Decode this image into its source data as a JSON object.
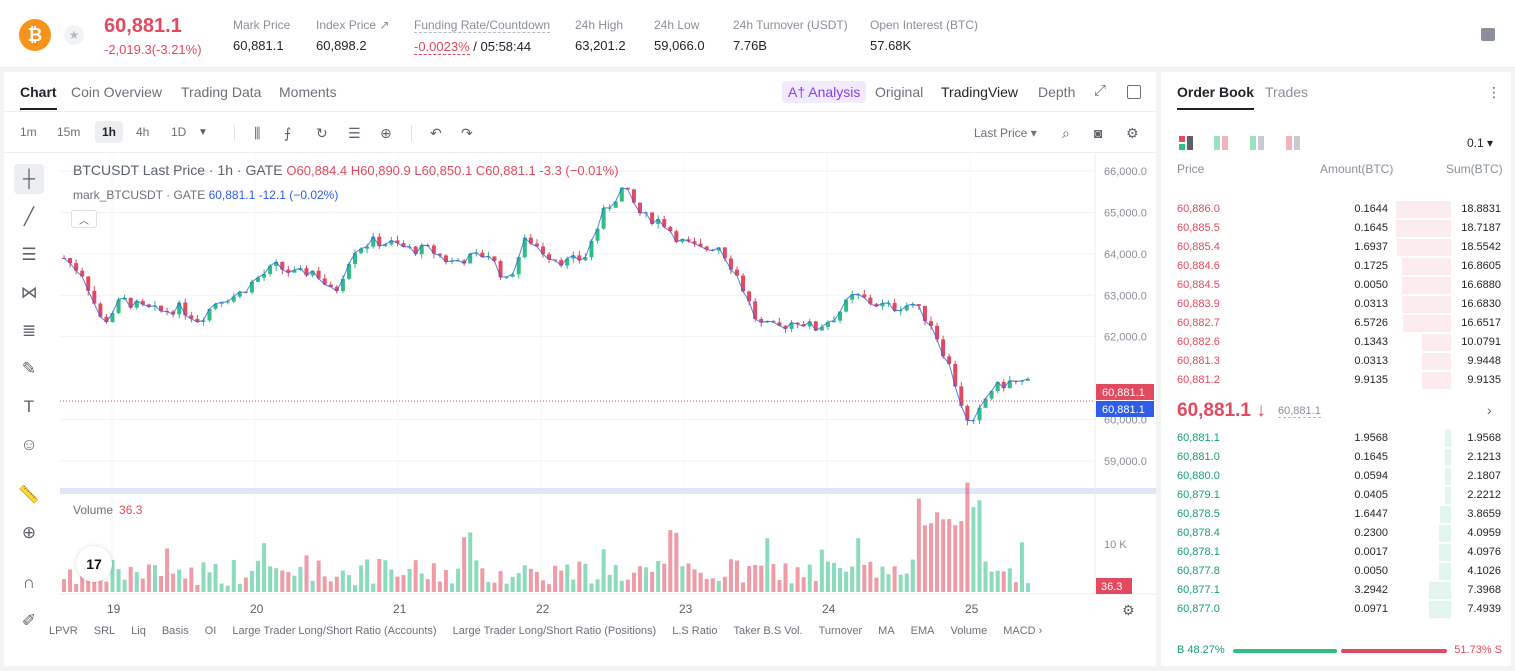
{
  "header": {
    "coin_symbol_glyph": "₿",
    "price": "60,881.1",
    "change": "-2,019.3(-3.21%)",
    "stats": [
      {
        "label": "Mark Price",
        "value": "60,881.1"
      },
      {
        "label": "Index Price ↗",
        "value": "60,898.2"
      },
      {
        "label": "Funding Rate/Countdown",
        "value": "-0.0023%",
        "value2": " / 05:58:44"
      },
      {
        "label": "24h High",
        "value": "63,201.2"
      },
      {
        "label": "24h Low",
        "value": "59,066.0"
      },
      {
        "label": "24h Turnover (USDT)",
        "value": "7.76B"
      },
      {
        "label": "Open Interest (BTC)",
        "value": "57.68K"
      }
    ]
  },
  "chart_tabs": {
    "chart": "Chart",
    "coin_overview": "Coin Overview",
    "trading_data": "Trading Data",
    "moments": "Moments",
    "analysis": "A† Analysis",
    "original": "Original",
    "tradingview": "TradingView",
    "depth": "Depth"
  },
  "toolbar": {
    "timeframes": [
      "1m",
      "15m",
      "1h",
      "4h",
      "1D"
    ],
    "active_timeframe": "1h",
    "last_price": "Last Price ▾"
  },
  "legend": {
    "title": "BTCUSDT Last Price · 1h · GATE",
    "ohlc": "O60,884.4  H60,890.9  L60,850.1  C60,881.1  -3.3 (−0.01%)",
    "mark_name": "mark_BTCUSDT · GATE",
    "mark_values": "60,881.1  -12.1 (−0.02%)"
  },
  "volume": {
    "label": "Volume",
    "value": "36.3"
  },
  "tv_logo": "17",
  "indicators": [
    "LPVR",
    "SRL",
    "Liq",
    "Basis",
    "OI",
    "Large Trader Long/Short Ratio (Accounts)",
    "Large Trader Long/Short Ratio (Positions)",
    "L.S Ratio",
    "Taker B.S Vol.",
    "Turnover",
    "MA",
    "EMA",
    "Volume",
    "MACD ›"
  ],
  "chart_data": {
    "type": "candlestick",
    "y_ticks": [
      "66,000.0",
      "65,000.0",
      "64,000.0",
      "63,000.0",
      "62,000.0",
      "60,000.0",
      "59,000.0"
    ],
    "ylim": [
      58900,
      66050
    ],
    "x_ticks": [
      "19",
      "20",
      "21",
      "22",
      "23",
      "24",
      "25"
    ],
    "last_price_tag": "60,881.1",
    "mark_price_tag": "60,881.1",
    "volume_tick": "10 K",
    "volume_last_tag": "36.3",
    "path_anchor_prices": [
      63900,
      63500,
      62300,
      62900,
      62700,
      62600,
      62700,
      62400,
      62900,
      63000,
      63400,
      63700,
      63500,
      63600,
      63000,
      64100,
      64300,
      64250,
      64100,
      64100,
      63800,
      63900,
      64000,
      63300,
      64400,
      64000,
      63800,
      63900,
      65000,
      65600,
      64900,
      64800,
      64300,
      64100,
      64200,
      63400,
      62300,
      62200,
      62400,
      62200,
      62500,
      63000,
      62800,
      62700,
      62800,
      62300,
      61200,
      59700,
      60700,
      60900,
      60880
    ]
  },
  "orderbook": {
    "tabs": [
      "Order Book",
      "Trades"
    ],
    "precision": "0.1 ▾",
    "headers": [
      "Price",
      "Amount(BTC)",
      "Sum(BTC)"
    ],
    "asks": [
      {
        "price": "60,886.0",
        "amount": "0.1644",
        "sum": "18.8831",
        "depth": 18.8831
      },
      {
        "price": "60,885.5",
        "amount": "0.1645",
        "sum": "18.7187",
        "depth": 18.7187
      },
      {
        "price": "60,885.4",
        "amount": "1.6937",
        "sum": "18.5542",
        "depth": 18.5542
      },
      {
        "price": "60,884.6",
        "amount": "0.1725",
        "sum": "16.8605",
        "depth": 16.8605
      },
      {
        "price": "60,884.5",
        "amount": "0.0050",
        "sum": "16.6880",
        "depth": 16.688
      },
      {
        "price": "60,883.9",
        "amount": "0.0313",
        "sum": "16.6830",
        "depth": 16.683
      },
      {
        "price": "60,882.7",
        "amount": "6.5726",
        "sum": "16.6517",
        "depth": 16.6517
      },
      {
        "price": "60,882.6",
        "amount": "0.1343",
        "sum": "10.0791",
        "depth": 10.0791
      },
      {
        "price": "60,881.3",
        "amount": "0.0313",
        "sum": "9.9448",
        "depth": 9.9448
      },
      {
        "price": "60,881.2",
        "amount": "9.9135",
        "sum": "9.9135",
        "depth": 9.9135
      }
    ],
    "mid": {
      "price": "60,881.1 ↓",
      "mark": "60,881.1"
    },
    "bids": [
      {
        "price": "60,881.1",
        "amount": "1.9568",
        "sum": "1.9568",
        "depth": 1.9568
      },
      {
        "price": "60,881.0",
        "amount": "0.1645",
        "sum": "2.1213",
        "depth": 2.1213
      },
      {
        "price": "60,880.0",
        "amount": "0.0594",
        "sum": "2.1807",
        "depth": 2.1807
      },
      {
        "price": "60,879.1",
        "amount": "0.0405",
        "sum": "2.2212",
        "depth": 2.2212
      },
      {
        "price": "60,878.5",
        "amount": "1.6447",
        "sum": "3.8659",
        "depth": 3.8659
      },
      {
        "price": "60,878.4",
        "amount": "0.2300",
        "sum": "4.0959",
        "depth": 4.0959
      },
      {
        "price": "60,878.1",
        "amount": "0.0017",
        "sum": "4.0976",
        "depth": 4.0976
      },
      {
        "price": "60,877.8",
        "amount": "0.0050",
        "sum": "4.1026",
        "depth": 4.1026
      },
      {
        "price": "60,877.1",
        "amount": "3.2942",
        "sum": "7.3968",
        "depth": 7.3968
      },
      {
        "price": "60,877.0",
        "amount": "0.0971",
        "sum": "7.4939",
        "depth": 7.4939
      }
    ],
    "buy_ratio": "B 48.27%",
    "sell_ratio": "51.73% S"
  },
  "colors": {
    "up": "#2ebd85",
    "down": "#e24a5f",
    "accent": "#8a3cf2"
  }
}
